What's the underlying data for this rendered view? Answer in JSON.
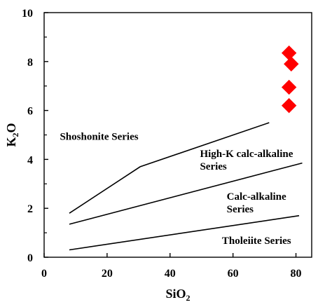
{
  "chart_data": {
    "type": "scatter",
    "xlabel": "SiO",
    "xlabel_subscript": "2",
    "ylabel": "K",
    "ylabel_subscript": "2",
    "ylabel_suffix": "O",
    "xlim": [
      0,
      85
    ],
    "ylim": [
      0,
      10
    ],
    "x_ticks": [
      0,
      20,
      40,
      60,
      80
    ],
    "y_ticks": [
      0,
      2,
      4,
      6,
      8,
      10
    ],
    "grid": false,
    "boundaries": [
      {
        "points": [
          [
            8,
            1.8
          ],
          [
            30.5,
            3.7
          ],
          [
            71.5,
            5.5
          ]
        ]
      },
      {
        "points": [
          [
            8,
            1.35
          ],
          [
            82,
            3.85
          ]
        ]
      },
      {
        "points": [
          [
            8,
            0.3
          ],
          [
            81,
            1.7
          ]
        ]
      }
    ],
    "field_labels": [
      {
        "lines": [
          "Shoshonite Series"
        ],
        "x": 5,
        "y": 4.8
      },
      {
        "lines": [
          "High-K calc-alkaline",
          "Series"
        ],
        "x": 49.5,
        "y": 4.1
      },
      {
        "lines": [
          "Calc-alkaline",
          "Series"
        ],
        "x": 58,
        "y": 2.35
      },
      {
        "lines": [
          "Tholeiite Series"
        ],
        "x": 56.5,
        "y": 0.55
      }
    ],
    "series": [
      {
        "marker": "diamond",
        "color": "#ff0000",
        "x": [
          77.8,
          78.5,
          77.8,
          77.8
        ],
        "y": [
          8.35,
          7.9,
          6.95,
          6.2
        ]
      }
    ]
  }
}
